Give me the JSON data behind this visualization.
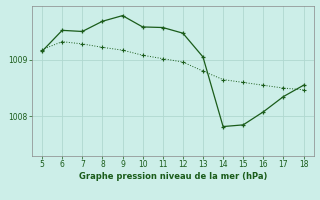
{
  "title": "Graphe pression niveau de la mer (hPa)",
  "background_color": "#cceee8",
  "line_color": "#1a5c1a",
  "grid_color": "#b0d8d0",
  "xlim": [
    4.5,
    18.5
  ],
  "ylim": [
    1007.3,
    1009.95
  ],
  "xticks": [
    5,
    6,
    7,
    8,
    9,
    10,
    11,
    12,
    13,
    14,
    15,
    16,
    17,
    18
  ],
  "yticks": [
    1008,
    1009
  ],
  "solid_x": [
    5,
    6,
    7,
    8,
    9,
    10,
    11,
    12,
    13,
    14,
    15,
    16,
    17,
    18
  ],
  "solid_y": [
    1009.15,
    1009.52,
    1009.5,
    1009.68,
    1009.78,
    1009.58,
    1009.57,
    1009.47,
    1009.05,
    1007.82,
    1007.85,
    1008.08,
    1008.35,
    1008.55
  ],
  "dotted_x": [
    5,
    6,
    7,
    8,
    9,
    10,
    11,
    12,
    13,
    14,
    15,
    16,
    17,
    18
  ],
  "dotted_y": [
    1009.18,
    1009.32,
    1009.28,
    1009.22,
    1009.17,
    1009.08,
    1009.02,
    1008.96,
    1008.8,
    1008.65,
    1008.6,
    1008.55,
    1008.5,
    1008.47
  ],
  "tick_fontsize": 5.5,
  "xlabel_fontsize": 6.0
}
